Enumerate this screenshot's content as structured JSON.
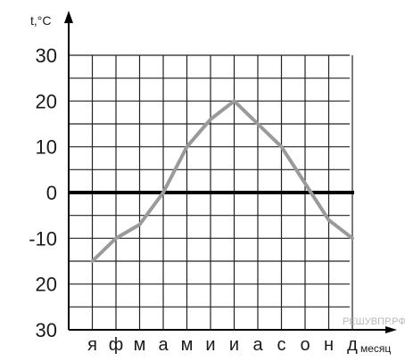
{
  "chart_data": {
    "type": "line",
    "ylabel": "t,°C",
    "xlabel": "месяц",
    "categories": [
      "я",
      "ф",
      "м",
      "а",
      "м",
      "и",
      "и",
      "а",
      "с",
      "о",
      "н",
      "д"
    ],
    "values": [
      -15,
      -10,
      -7,
      0,
      10,
      16,
      20,
      15,
      10,
      2,
      -6,
      -10
    ],
    "ylim": [
      -30,
      30
    ],
    "yticks": [
      "30",
      "20",
      "10",
      "0",
      "-10",
      "20",
      "30"
    ],
    "grid": true,
    "line_color": "#9a9a9a",
    "zero_line_color": "#000000"
  },
  "watermark": "РЕШУВПР.РФ"
}
